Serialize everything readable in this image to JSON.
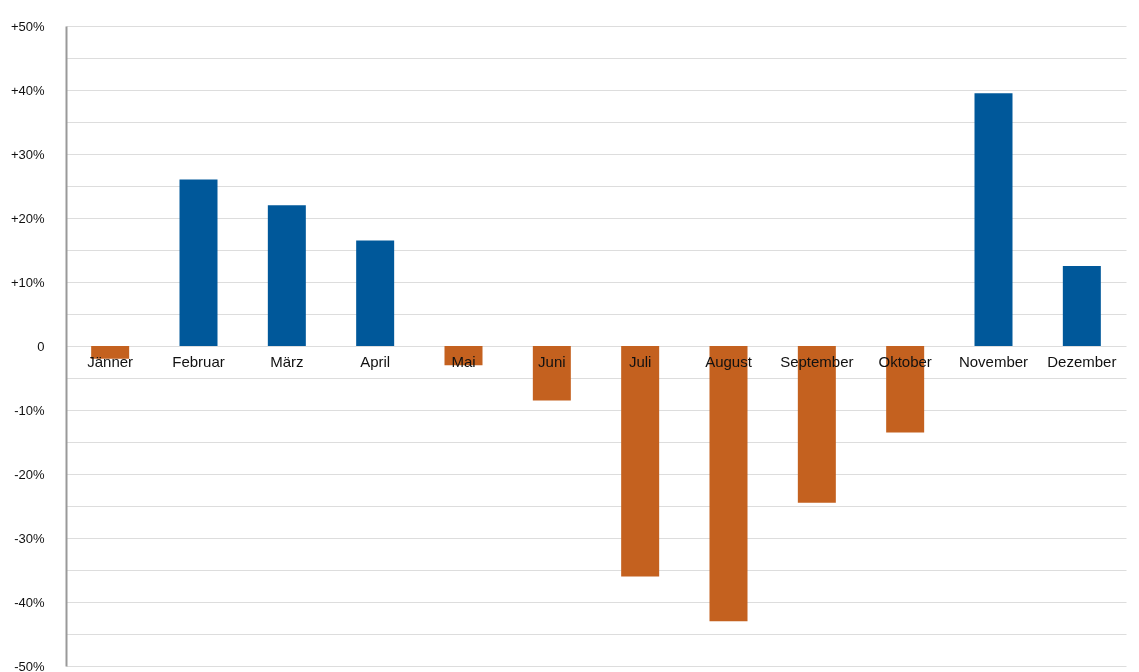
{
  "chart_data": {
    "type": "bar",
    "categories": [
      "Jänner",
      "Februar",
      "März",
      "April",
      "Mai",
      "Juni",
      "Juli",
      "August",
      "September",
      "Oktober",
      "November",
      "Dezember"
    ],
    "values": [
      -2,
      26,
      22,
      16.5,
      -3,
      -8.5,
      -36,
      -43,
      -24.5,
      -13.5,
      39.5,
      12.5
    ],
    "colors": [
      "#c4611f",
      "#00589a",
      "#00589a",
      "#00589a",
      "#c4611f",
      "#c4611f",
      "#c4611f",
      "#c4611f",
      "#c4611f",
      "#c4611f",
      "#00589a",
      "#00589a"
    ],
    "ylim": [
      -50,
      50
    ],
    "yticks": [
      {
        "value": 50,
        "label": "+50%"
      },
      {
        "value": 45,
        "label": null
      },
      {
        "value": 40,
        "label": "+40%"
      },
      {
        "value": 35,
        "label": null
      },
      {
        "value": 30,
        "label": "+30%"
      },
      {
        "value": 25,
        "label": null
      },
      {
        "value": 20,
        "label": "+20%"
      },
      {
        "value": 15,
        "label": null
      },
      {
        "value": 10,
        "label": "+10%"
      },
      {
        "value": 5,
        "label": null
      },
      {
        "value": 0,
        "label": "0"
      },
      {
        "value": -5,
        "label": null
      },
      {
        "value": -10,
        "label": "-10%"
      },
      {
        "value": -15,
        "label": null
      },
      {
        "value": -20,
        "label": "-20%"
      },
      {
        "value": -25,
        "label": null
      },
      {
        "value": -30,
        "label": "-30%"
      },
      {
        "value": -35,
        "label": null
      },
      {
        "value": -40,
        "label": "-40%"
      },
      {
        "value": -45,
        "label": null
      },
      {
        "value": -50,
        "label": "-50%"
      }
    ],
    "grid": "y"
  }
}
